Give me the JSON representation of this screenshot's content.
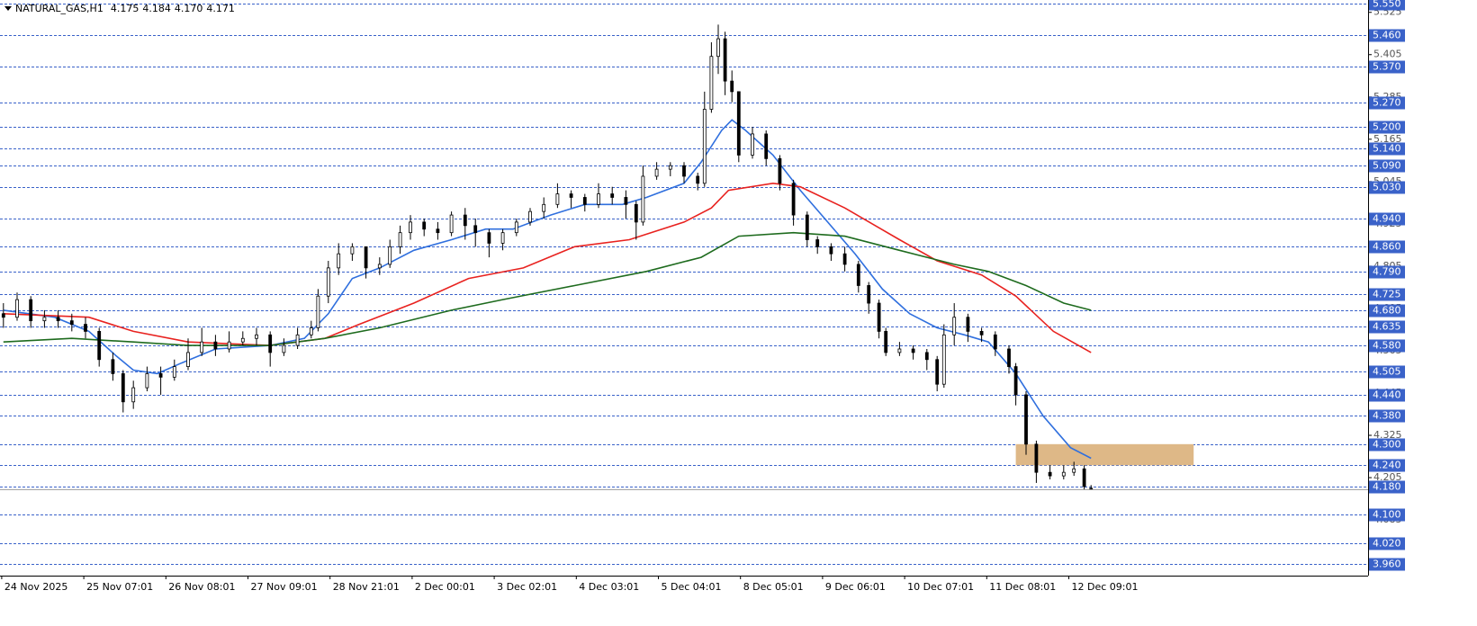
{
  "chart_data": {
    "type": "candlestick",
    "title": "NATURAL_GAS,H1",
    "last_bar_labels": [
      "4.175",
      "4.184",
      "4.170",
      "4.171"
    ],
    "xlim": [
      0,
      400
    ],
    "ylim": [
      3.927,
      5.56
    ],
    "xticks": [
      {
        "value": 0.5,
        "label": "24 Nov 2025"
      },
      {
        "value": 24.5,
        "label": "25 Nov 07:01"
      },
      {
        "value": 48.5,
        "label": "26 Nov 08:01"
      },
      {
        "value": 72.5,
        "label": "27 Nov 09:01"
      },
      {
        "value": 96.5,
        "label": "28 Nov 21:01"
      },
      {
        "value": 120.5,
        "label": "2 Dec 00:01"
      },
      {
        "value": 144.5,
        "label": "3 Dec 02:01"
      },
      {
        "value": 168.5,
        "label": "4 Dec 03:01"
      },
      {
        "value": 192.5,
        "label": "5 Dec 04:01"
      },
      {
        "value": 216.5,
        "label": "8 Dec 05:01"
      },
      {
        "value": 240.5,
        "label": "9 Dec 06:01"
      },
      {
        "value": 264.5,
        "label": "10 Dec 07:01"
      },
      {
        "value": 288.5,
        "label": "11 Dec 08:01"
      },
      {
        "value": 312.5,
        "label": "12 Dec 09:01"
      }
    ],
    "yticks": [
      5.525,
      5.405,
      5.285,
      5.165,
      5.045,
      4.925,
      4.805,
      4.685,
      4.565,
      4.445,
      4.325,
      4.205,
      4.085
    ],
    "levels": [
      {
        "value": 5.55,
        "label": "5.550"
      },
      {
        "value": 5.46,
        "label": "5.460"
      },
      {
        "value": 5.37,
        "label": "5.370"
      },
      {
        "value": 5.27,
        "label": "5.270"
      },
      {
        "value": 5.2,
        "label": "5.200"
      },
      {
        "value": 5.14,
        "label": "5.140"
      },
      {
        "value": 5.09,
        "label": "5.090"
      },
      {
        "value": 5.03,
        "label": "5.030"
      },
      {
        "value": 4.94,
        "label": "4.940"
      },
      {
        "value": 4.86,
        "label": "4.860"
      },
      {
        "value": 4.79,
        "label": "4.790"
      },
      4.725,
      {
        "value": 4.68,
        "label": "4.680"
      },
      4.635,
      {
        "value": 4.58,
        "label": "4.580"
      },
      4.505,
      {
        "value": 4.44,
        "label": "4.440"
      },
      {
        "value": 4.38,
        "label": "4.380"
      },
      {
        "value": 4.3,
        "label": "4.300"
      },
      {
        "value": 4.24,
        "label": "4.240"
      },
      {
        "value": 4.18,
        "label": "4.180"
      },
      {
        "value": 4.1,
        "label": "4.100"
      },
      {
        "value": 4.02,
        "label": "4.020"
      },
      {
        "value": 3.96,
        "label": "3.960"
      }
    ],
    "level_color": "#3a62c9",
    "up_color": "#ffffff",
    "down_color": "#000000",
    "wick_color": "#000000",
    "candles": {
      "x": [
        1,
        5,
        9,
        13,
        17,
        21,
        25,
        29,
        33,
        36,
        39,
        43,
        47,
        51,
        55,
        59,
        63,
        67,
        71,
        75,
        79,
        83,
        87,
        91,
        93,
        96,
        99,
        103,
        107,
        111,
        114,
        117,
        120,
        124,
        128,
        132,
        136,
        139,
        143,
        147,
        151,
        155,
        159,
        163,
        167,
        171,
        175,
        179,
        183,
        186,
        188,
        192,
        196,
        200,
        204,
        206,
        208,
        210,
        212,
        214,
        216,
        220,
        224,
        228,
        232,
        236,
        239,
        243,
        247,
        251,
        254,
        257,
        259,
        263,
        267,
        271,
        274,
        276,
        279,
        283,
        287,
        291,
        295,
        297,
        300,
        303,
        307,
        311,
        314,
        317,
        319
      ],
      "open": [
        4.67,
        4.66,
        4.71,
        4.65,
        4.66,
        4.65,
        4.64,
        4.62,
        4.54,
        4.5,
        4.42,
        4.46,
        4.5,
        4.49,
        4.52,
        4.56,
        4.59,
        4.57,
        4.59,
        4.6,
        4.61,
        4.56,
        4.58,
        4.61,
        4.63,
        4.72,
        4.8,
        4.84,
        4.86,
        4.8,
        4.81,
        4.86,
        4.9,
        4.93,
        4.91,
        4.9,
        4.95,
        4.92,
        4.9,
        4.87,
        4.9,
        4.93,
        4.96,
        4.98,
        5.01,
        5.0,
        4.98,
        5.01,
        5.0,
        4.98,
        4.93,
        5.06,
        5.08,
        5.09,
        5.06,
        5.04,
        5.25,
        5.4,
        5.45,
        5.33,
        5.3,
        5.12,
        5.18,
        5.11,
        5.04,
        4.95,
        4.88,
        4.86,
        4.84,
        4.81,
        4.75,
        4.7,
        4.62,
        4.56,
        4.57,
        4.56,
        4.54,
        4.47,
        4.61,
        4.66,
        4.62,
        4.61,
        4.57,
        4.52,
        4.44,
        4.3,
        4.22,
        4.21,
        4.22,
        4.23,
        4.175
      ],
      "high": [
        4.7,
        4.73,
        4.72,
        4.68,
        4.68,
        4.67,
        4.66,
        4.63,
        4.56,
        4.51,
        4.48,
        4.52,
        4.52,
        4.54,
        4.6,
        4.63,
        4.61,
        4.62,
        4.62,
        4.63,
        4.62,
        4.6,
        4.63,
        4.65,
        4.74,
        4.82,
        4.87,
        4.87,
        4.86,
        4.83,
        4.88,
        4.92,
        4.95,
        4.94,
        4.93,
        4.96,
        4.97,
        4.94,
        4.91,
        4.91,
        4.94,
        4.97,
        5.0,
        5.04,
        5.02,
        5.01,
        5.04,
        5.03,
        5.02,
        4.99,
        5.09,
        5.1,
        5.1,
        5.1,
        5.07,
        5.3,
        5.44,
        5.49,
        5.47,
        5.36,
        5.3,
        5.2,
        5.19,
        5.12,
        5.05,
        4.96,
        4.89,
        4.87,
        4.86,
        4.82,
        4.76,
        4.71,
        4.63,
        4.59,
        4.58,
        4.57,
        4.55,
        4.64,
        4.7,
        4.67,
        4.63,
        4.62,
        4.58,
        4.53,
        4.45,
        4.31,
        4.24,
        4.24,
        4.25,
        4.24,
        4.184
      ],
      "low": [
        4.63,
        4.65,
        4.63,
        4.63,
        4.63,
        4.62,
        4.6,
        4.52,
        4.48,
        4.39,
        4.4,
        4.45,
        4.44,
        4.48,
        4.51,
        4.55,
        4.55,
        4.56,
        4.58,
        4.58,
        4.52,
        4.55,
        4.57,
        4.6,
        4.62,
        4.7,
        4.78,
        4.82,
        4.77,
        4.78,
        4.8,
        4.84,
        4.88,
        4.89,
        4.88,
        4.89,
        4.88,
        4.86,
        4.83,
        4.85,
        4.89,
        4.92,
        4.94,
        4.97,
        4.97,
        4.96,
        4.97,
        4.98,
        4.94,
        4.88,
        4.92,
        5.05,
        5.06,
        5.04,
        5.02,
        5.03,
        5.24,
        5.35,
        5.29,
        5.27,
        5.1,
        5.11,
        5.09,
        5.02,
        4.92,
        4.86,
        4.84,
        4.82,
        4.79,
        4.73,
        4.67,
        4.6,
        4.55,
        4.55,
        4.54,
        4.51,
        4.45,
        4.46,
        4.58,
        4.59,
        4.59,
        4.55,
        4.5,
        4.41,
        4.27,
        4.19,
        4.2,
        4.2,
        4.21,
        4.17,
        4.17
      ],
      "close": [
        4.66,
        4.71,
        4.65,
        4.66,
        4.65,
        4.64,
        4.62,
        4.54,
        4.5,
        4.42,
        4.46,
        4.5,
        4.49,
        4.52,
        4.56,
        4.59,
        4.57,
        4.59,
        4.6,
        4.61,
        4.56,
        4.58,
        4.61,
        4.63,
        4.72,
        4.8,
        4.84,
        4.86,
        4.8,
        4.81,
        4.86,
        4.9,
        4.93,
        4.91,
        4.9,
        4.95,
        4.92,
        4.9,
        4.87,
        4.9,
        4.93,
        4.96,
        4.98,
        5.01,
        5.0,
        4.98,
        5.01,
        5.0,
        4.98,
        4.93,
        5.06,
        5.08,
        5.09,
        5.06,
        5.04,
        5.25,
        5.4,
        5.45,
        5.33,
        5.3,
        5.12,
        5.18,
        5.11,
        5.04,
        4.95,
        4.88,
        4.86,
        4.84,
        4.81,
        4.75,
        4.7,
        4.62,
        4.56,
        4.57,
        4.56,
        4.54,
        4.47,
        4.61,
        4.66,
        4.62,
        4.61,
        4.57,
        4.52,
        4.44,
        4.3,
        4.22,
        4.21,
        4.22,
        4.23,
        4.18,
        4.171
      ]
    },
    "lines": [
      {
        "color": "#2f6fde",
        "x": [
          1,
          16,
          26,
          34,
          39,
          46,
          53,
          63,
          79,
          89,
          96,
          103,
          111,
          121,
          132,
          142,
          150,
          161,
          171,
          182,
          189,
          200,
          205,
          211,
          214,
          218,
          226,
          234,
          242,
          250,
          258,
          266,
          274,
          282,
          289,
          297,
          305,
          313,
          319
        ],
        "values": [
          4.68,
          4.66,
          4.62,
          4.55,
          4.51,
          4.5,
          4.53,
          4.57,
          4.58,
          4.6,
          4.67,
          4.77,
          4.8,
          4.85,
          4.88,
          4.91,
          4.91,
          4.95,
          4.98,
          4.98,
          5.0,
          5.04,
          5.1,
          5.19,
          5.22,
          5.19,
          5.12,
          5.02,
          4.93,
          4.84,
          4.74,
          4.67,
          4.63,
          4.61,
          4.59,
          4.5,
          4.38,
          4.29,
          4.26
        ]
      },
      {
        "color": "#e8221f",
        "x": [
          1,
          26,
          39,
          55,
          79,
          95,
          105,
          121,
          137,
          153,
          168,
          184,
          200,
          208,
          213,
          226,
          234,
          247,
          263,
          274,
          287,
          297,
          308,
          319
        ],
        "values": [
          4.67,
          4.66,
          4.62,
          4.59,
          4.58,
          4.6,
          4.64,
          4.7,
          4.77,
          4.8,
          4.86,
          4.88,
          4.93,
          4.97,
          5.02,
          5.04,
          5.03,
          4.97,
          4.88,
          4.82,
          4.78,
          4.72,
          4.62,
          4.56
        ]
      },
      {
        "color": "#1e6b1e",
        "x": [
          1,
          21,
          39,
          55,
          79,
          95,
          111,
          132,
          147,
          168,
          189,
          205,
          216,
          232,
          247,
          263,
          279,
          289,
          300,
          311,
          319
        ],
        "values": [
          4.59,
          4.6,
          4.59,
          4.58,
          4.58,
          4.6,
          4.63,
          4.68,
          4.71,
          4.75,
          4.79,
          4.83,
          4.89,
          4.9,
          4.89,
          4.85,
          4.81,
          4.79,
          4.75,
          4.7,
          4.68
        ]
      }
    ],
    "zones": [
      {
        "color": "#deb887",
        "from": 4.24,
        "to": 4.3,
        "x": [
          297,
          349
        ]
      }
    ]
  }
}
